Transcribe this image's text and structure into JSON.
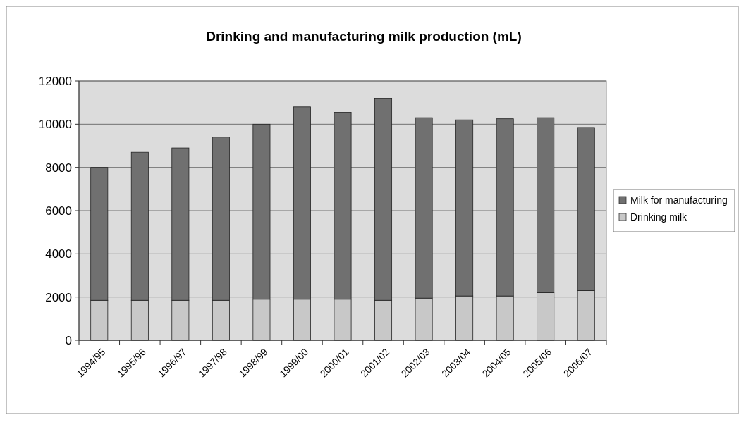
{
  "chart_data": {
    "type": "bar",
    "title": "Drinking and manufacturing milk production (mL)",
    "categories": [
      "1994/95",
      "1995/96",
      "1996/97",
      "1997/98",
      "1998/99",
      "1999/00",
      "2000/01",
      "2001/02",
      "2002/03",
      "2003/04",
      "2004/05",
      "2005/06",
      "2006/07"
    ],
    "stacked": true,
    "series": [
      {
        "name": "Drinking milk",
        "color": "#c8c8c8",
        "values": [
          1850,
          1850,
          1850,
          1850,
          1900,
          1900,
          1900,
          1850,
          1950,
          2050,
          2050,
          2200,
          2300
        ]
      },
      {
        "name": "Milk for manufacturing",
        "color": "#707070",
        "values": [
          6150,
          6850,
          7050,
          7550,
          8100,
          8900,
          8650,
          9350,
          8350,
          8150,
          8200,
          8100,
          7550
        ]
      }
    ],
    "ylim": [
      0,
      12000
    ],
    "yticks": [
      0,
      2000,
      4000,
      6000,
      8000,
      10000,
      12000
    ],
    "grid": "y",
    "legend": "right"
  }
}
